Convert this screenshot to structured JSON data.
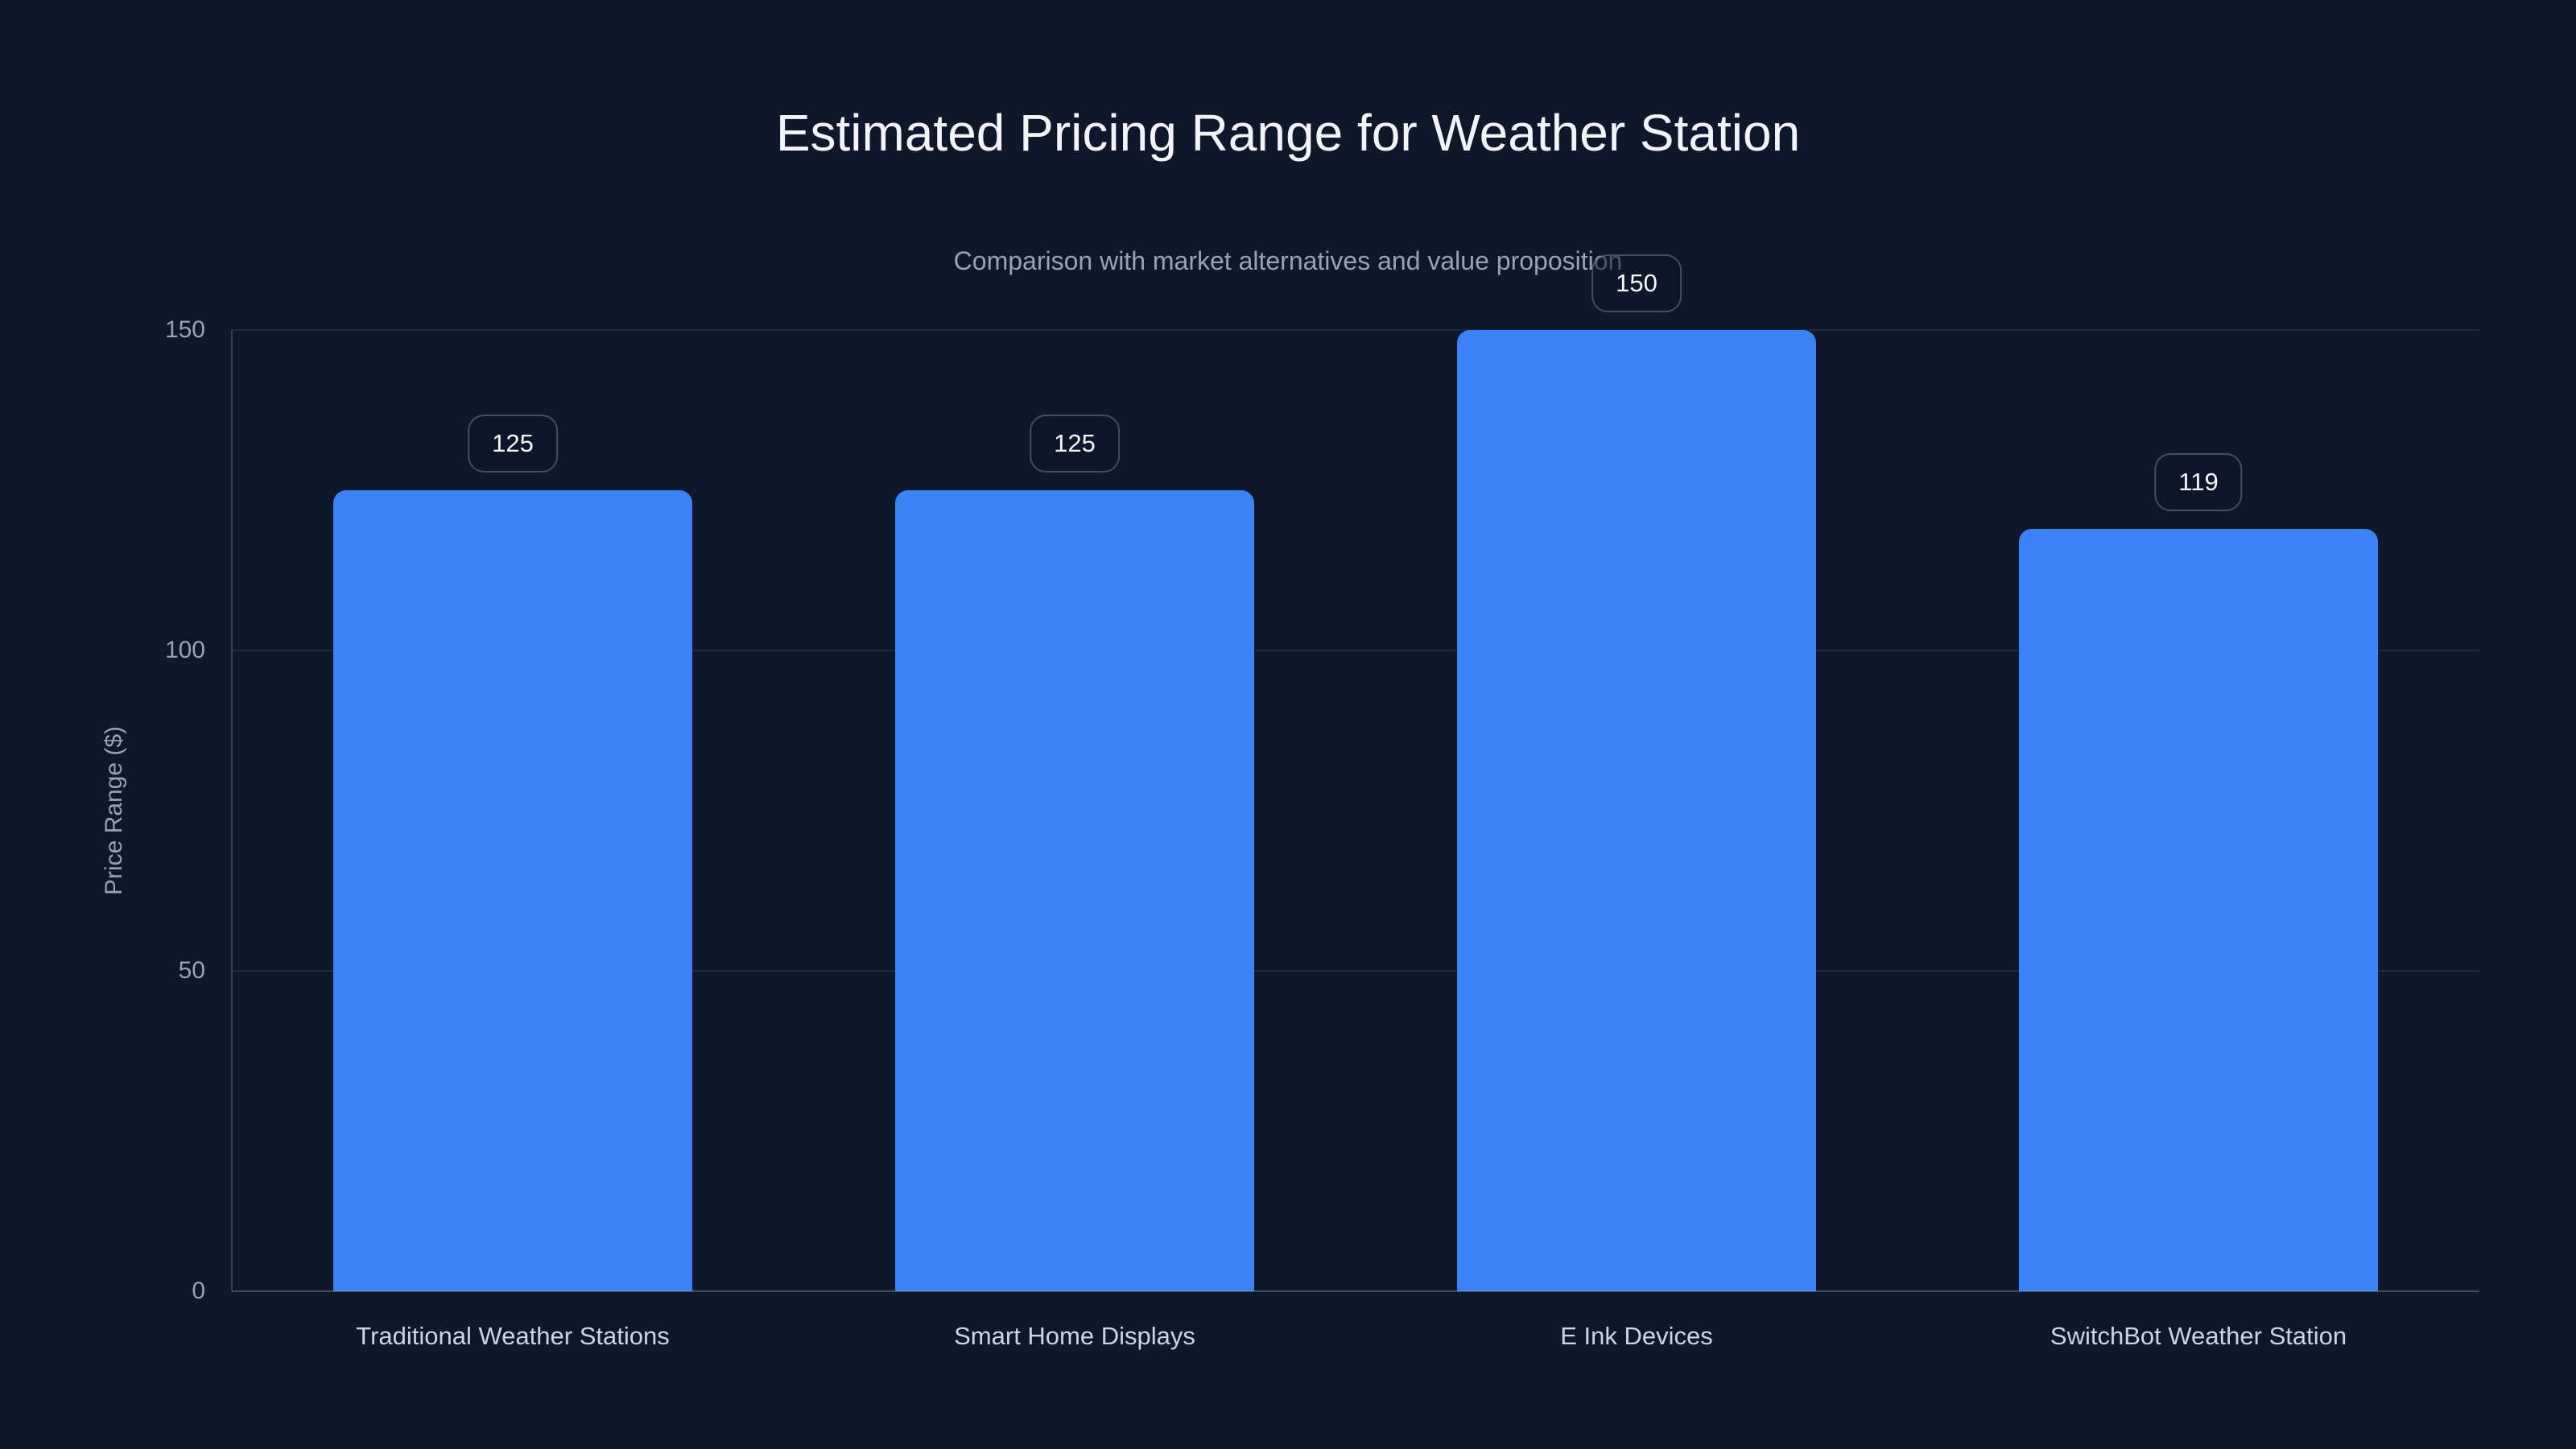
{
  "page": {
    "background": "#0f172a"
  },
  "chart_data": {
    "type": "bar",
    "title": "Estimated Pricing Range for Weather Station",
    "subtitle": "Comparison with market alternatives and value proposition",
    "categories": [
      "Traditional Weather Stations",
      "Smart Home Displays",
      "E Ink Devices",
      "SwitchBot Weather Station"
    ],
    "values": [
      125,
      125,
      150,
      119
    ],
    "value_labels": [
      "125",
      "125",
      "150",
      "119"
    ],
    "xlabel": "",
    "ylabel": "Price Range ($)",
    "yticks": [
      0,
      50,
      100,
      150
    ],
    "ylim": [
      0,
      150
    ],
    "bar_color": "#3b82f6",
    "grid": true,
    "legend": false,
    "annotation_style": "rounded outlined badge above each bar"
  }
}
